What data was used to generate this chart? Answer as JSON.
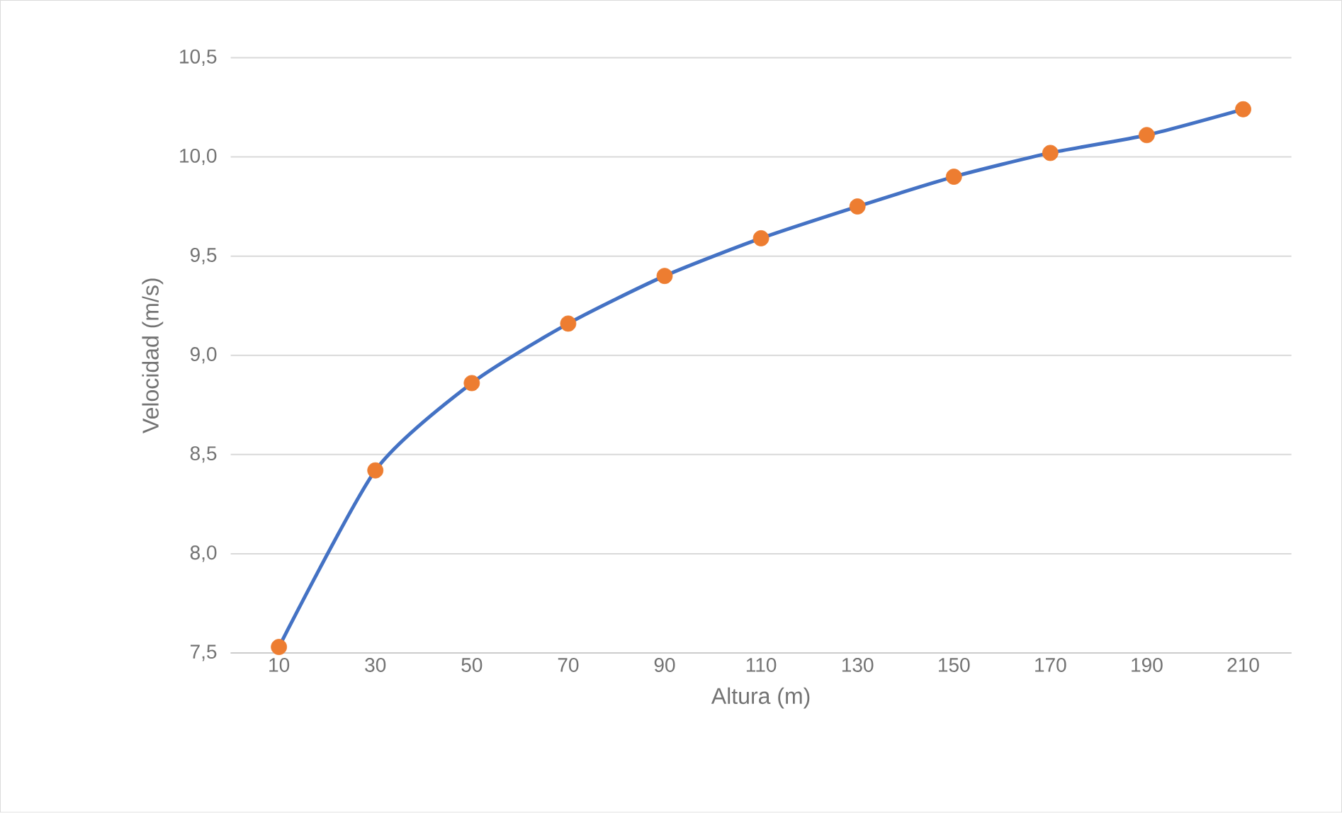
{
  "chart_data": {
    "type": "line",
    "xlabel": "Altura (m)",
    "ylabel": "Velocidad (m/s)",
    "categories": [
      "10",
      "30",
      "50",
      "70",
      "90",
      "110",
      "130",
      "150",
      "170",
      "190",
      "210"
    ],
    "series": [
      {
        "color": "#4472c4",
        "colors": [
          "#ed7d31",
          "#ed7d31",
          "#ed7d31",
          "#ed7d31",
          "#ed7d31",
          "#ed7d31",
          "#ed7d31",
          "#ed7d31",
          "#ed7d31",
          "#ed7d31",
          "#ed7d31"
        ],
        "values": [
          7.53,
          8.42,
          8.86,
          9.16,
          9.4,
          9.59,
          9.75,
          9.9,
          10.02,
          10.11,
          10.24
        ]
      }
    ],
    "ylim": [
      7.5,
      10.5
    ],
    "yticks": [
      {
        "value": 7.5,
        "label": "7,5"
      },
      {
        "value": 8.0,
        "label": "8,0"
      },
      {
        "value": 8.5,
        "label": "8,5"
      },
      {
        "value": 9.0,
        "label": "9,0"
      },
      {
        "value": 9.5,
        "label": "9,5"
      },
      {
        "value": 10.0,
        "label": "10,0"
      },
      {
        "value": 10.5,
        "label": "10,5"
      }
    ],
    "grid": "y",
    "marker": "circle",
    "line_style": "solid"
  }
}
